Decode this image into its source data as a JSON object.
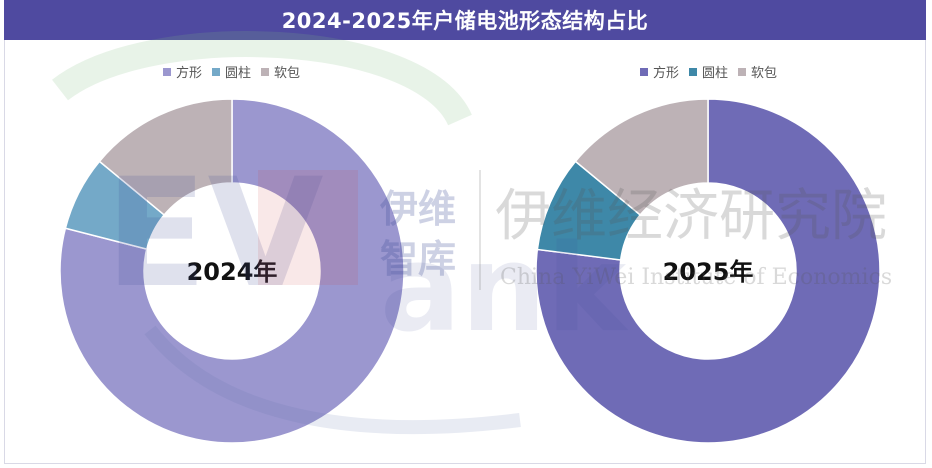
{
  "title": "2024-2025年户储电池形态结构占比",
  "colors": {
    "title_bg": "#4f4aa0",
    "square_2024": "#9b97cf",
    "square_2025": "#6f6bb6",
    "cylindrical_2024": "#74a9c8",
    "cylindrical_2025": "#3e88a8",
    "pouch": "#bdb2b6"
  },
  "watermark": {
    "logo_text": "EVTank",
    "org_short": "伊维 智库",
    "org_name": "伊维经济研究院",
    "org_name_en": "China YiWei Institute of Economics"
  },
  "chart_data": [
    {
      "type": "pie",
      "center_label": "2024年",
      "legend": [
        "方形",
        "圆柱",
        "软包"
      ],
      "series": [
        {
          "name": "方形",
          "value": 79
        },
        {
          "name": "圆柱",
          "value": 7
        },
        {
          "name": "软包",
          "value": 14
        }
      ]
    },
    {
      "type": "pie",
      "center_label": "2025年",
      "legend": [
        "方形",
        "圆柱",
        "软包"
      ],
      "series": [
        {
          "name": "方形",
          "value": 77
        },
        {
          "name": "圆柱",
          "value": 9
        },
        {
          "name": "软包",
          "value": 14
        }
      ]
    }
  ]
}
